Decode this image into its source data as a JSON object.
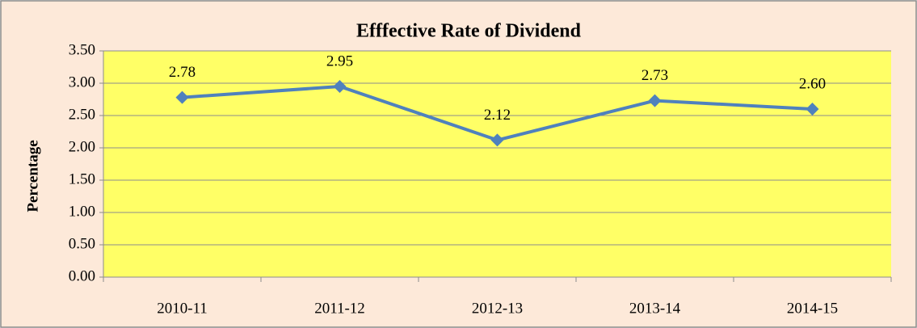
{
  "chart_data": {
    "type": "line",
    "title": "Efffective Rate of Dividend",
    "y_label": "Percentage",
    "categories": [
      "2010-11",
      "2011-12",
      "2012-13",
      "2013-14",
      "2014-15"
    ],
    "values": [
      2.78,
      2.95,
      2.12,
      2.73,
      2.6
    ],
    "value_labels": [
      "2.78",
      "2.95",
      "2.12",
      "2.73",
      "2.60"
    ],
    "color": "#4f81bd",
    "ylim": [
      0,
      3.5
    ],
    "yticks": [
      {
        "value": 0,
        "label": "0.00"
      },
      {
        "value": 0.5,
        "label": "0.50"
      },
      {
        "value": 1,
        "label": "1.00"
      },
      {
        "value": 1.5,
        "label": "1.50"
      },
      {
        "value": 2,
        "label": "2.00"
      },
      {
        "value": 2.5,
        "label": "2.50"
      },
      {
        "value": 3,
        "label": "3.00"
      },
      {
        "value": 3.5,
        "label": "3.50"
      }
    ],
    "grid": true
  }
}
